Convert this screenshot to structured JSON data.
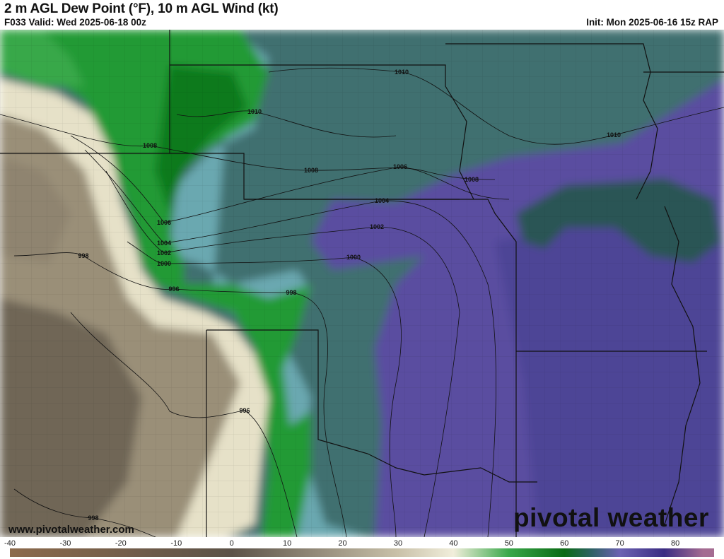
{
  "header": {
    "title": "2 m AGL Dew Point (°F), 10 m AGL Wind (kt)",
    "valid": "F033 Valid: Wed 2025-06-18 00z",
    "init": "Init: Mon 2025-06-16 15z RAP"
  },
  "isobars": {
    "labels": [
      "1010",
      "1010",
      "1010",
      "1008",
      "1008",
      "1006",
      "1008",
      "1004",
      "1002",
      "1006",
      "1004",
      "1002",
      "1000",
      "1000",
      "998",
      "996",
      "998",
      "996",
      "998"
    ]
  },
  "footer": {
    "website": "www.pivotalweather.com",
    "brand": "pivotal weather"
  },
  "colorbar": {
    "unit": "°F",
    "ticks": [
      "-40",
      "-30",
      "-20",
      "-10",
      "0",
      "10",
      "20",
      "30",
      "40",
      "50",
      "60",
      "70",
      "80"
    ],
    "colors": {
      "-40": "#8c6a4c",
      "0": "#5c5248",
      "30": "#c9c1a9",
      "40": "#f1eedb",
      "50": "#3aa84a",
      "60": "#0b6a14",
      "65": "#2f6266",
      "70": "#6c62b2",
      "78": "#3b2c82",
      "85": "#a56c92"
    }
  }
}
